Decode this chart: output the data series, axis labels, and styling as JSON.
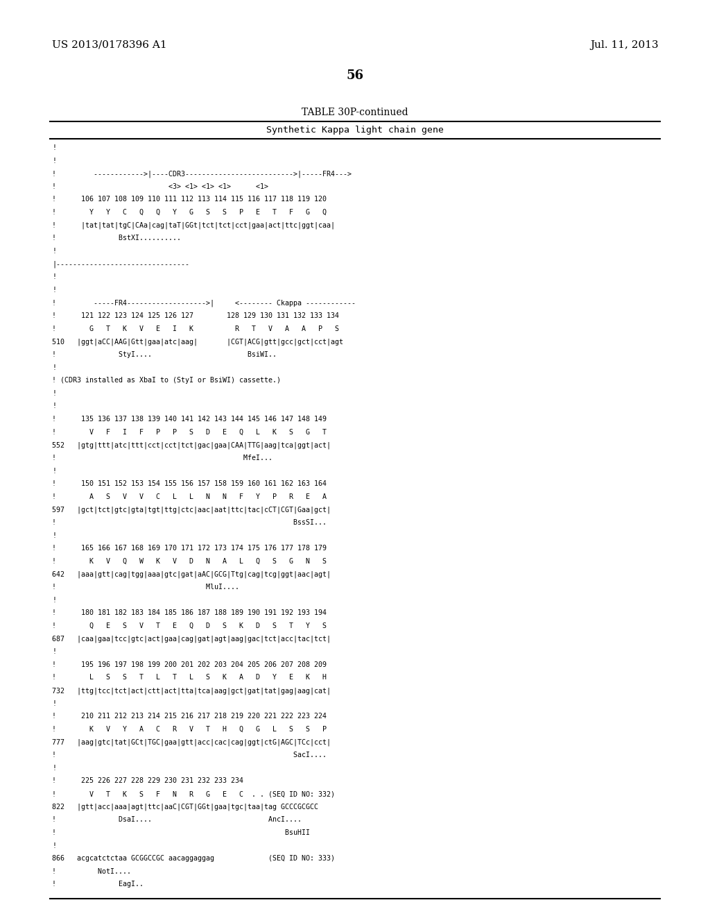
{
  "header_left": "US 2013/0178396 A1",
  "header_right": "Jul. 11, 2013",
  "page_number": "56",
  "table_title": "TABLE 30P-continued",
  "table_subtitle": "Synthetic Kappa light chain gene",
  "background_color": "#ffffff",
  "text_color": "#000000",
  "content": [
    "!",
    "!",
    "!         ------------>|----CDR3-------------------------->|-----FR4--->",
    "!                           <3> <1> <1> <1>      <1>",
    "!      106 107 108 109 110 111 112 113 114 115 116 117 118 119 120",
    "!        Y   Y   C   Q   Q   Y   G   S   S   P   E   T   F   G   Q",
    "!      |tat|tat|tgC|CAa|cag|taT|GGt|tct|tct|cct|gaa|act|ttc|ggt|caa|",
    "!               BstXI..........",
    "!",
    "|--------------------------------",
    "!",
    "!",
    "!         -----FR4------------------->|     <-------- Ckappa ------------",
    "!      121 122 123 124 125 126 127        128 129 130 131 132 133 134",
    "!        G   T   K   V   E   I   K          R   T   V   A   A   P   S",
    "510   |ggt|aCC|AAG|Gtt|gaa|atc|aag|       |CGT|ACG|gtt|gcc|gct|cct|agt",
    "!               StyI....                       BsiWI..",
    "!",
    "! (CDR3 installed as XbaI to (StyI or BsiWI) cassette.)",
    "!",
    "!",
    "!      135 136 137 138 139 140 141 142 143 144 145 146 147 148 149",
    "!        V   F   I   F   P   P   S   D   E   Q   L   K   S   G   T",
    "552   |gtg|ttt|atc|ttt|cct|cct|tct|gac|gaa|CAA|TTG|aag|tca|ggt|act|",
    "!                                             MfeI...",
    "!",
    "!      150 151 152 153 154 155 156 157 158 159 160 161 162 163 164",
    "!        A   S   V   V   C   L   L   N   N   F   Y   P   R   E   A",
    "597   |gct|tct|gtc|gta|tgt|ttg|ctc|aac|aat|ttc|tac|cCT|CGT|Gaa|gct|",
    "!                                                         BssSI...",
    "!",
    "!      165 166 167 168 169 170 171 172 173 174 175 176 177 178 179",
    "!        K   V   Q   W   K   V   D   N   A   L   Q   S   G   N   S",
    "642   |aaa|gtt|cag|tgg|aaa|gtc|gat|aAC|GCG|Ttg|cag|tcg|ggt|aac|agt|",
    "!                                    MluI....",
    "!",
    "!      180 181 182 183 184 185 186 187 188 189 190 191 192 193 194",
    "!        Q   E   S   V   T   E   Q   D   S   K   D   S   T   Y   S",
    "687   |caa|gaa|tcc|gtc|act|gaa|cag|gat|agt|aag|gac|tct|acc|tac|tct|",
    "!",
    "!      195 196 197 198 199 200 201 202 203 204 205 206 207 208 209",
    "!        L   S   S   T   L   T   L   S   K   A   D   Y   E   K   H",
    "732   |ttg|tcc|tct|act|ctt|act|tta|tca|aag|gct|gat|tat|gag|aag|cat|",
    "!",
    "!      210 211 212 213 214 215 216 217 218 219 220 221 222 223 224",
    "!        K   V   Y   A   C   R   V   T   H   Q   G   L   S   S   P",
    "777   |aag|gtc|tat|GCt|TGC|gaa|gtt|acc|cac|cag|ggt|ctG|AGC|TCc|cct|",
    "!                                                         SacI....",
    "!",
    "!      225 226 227 228 229 230 231 232 233 234",
    "!        V   T   K   S   F   N   R   G   E   C  . . (SEQ ID NO: 332)",
    "822   |gtt|acc|aaa|agt|ttc|aaC|CGT|GGt|gaa|tgc|taa|tag GCCCGCGCC",
    "!               DsaI....                            AncI....",
    "!                                                       BsuHII",
    "!",
    "866   acgcatctctaa GCGGCCGC aacaggaggag             (SEQ ID NO: 333)",
    "!          NotI....",
    "!               EagI.."
  ]
}
